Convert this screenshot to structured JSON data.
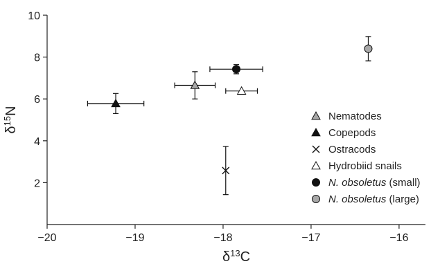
{
  "chart_data": {
    "type": "scatter",
    "xlabel_prefix": "δ",
    "xlabel_sup": "13",
    "xlabel_suffix": "C",
    "ylabel_prefix": "δ",
    "ylabel_sup": "15",
    "ylabel_suffix": "N",
    "xlim": [
      -20,
      -15.7
    ],
    "ylim": [
      0,
      10
    ],
    "xticks": [
      -20,
      -19,
      -18,
      -17,
      -16
    ],
    "yticks": [
      2,
      4,
      6,
      8,
      10
    ],
    "xtick_labels": [
      "−20",
      "−19",
      "−18",
      "−17",
      "−16"
    ],
    "ytick_labels": [
      "2",
      "4",
      "6",
      "8",
      "10"
    ],
    "legend_position": "lower-right",
    "series": [
      {
        "name": "Nematodes",
        "name_italic": "",
        "marker": "triangle",
        "fill": "#a8a8a8",
        "x": -18.32,
        "y": 6.65,
        "xerr": 0.23,
        "yerr": 0.65
      },
      {
        "name": "Copepods",
        "name_italic": "",
        "marker": "triangle",
        "fill": "#111111",
        "x": -19.22,
        "y": 5.78,
        "xerr": 0.32,
        "yerr": 0.48
      },
      {
        "name": "Ostracods",
        "name_italic": "",
        "marker": "cross",
        "fill": "#111111",
        "x": -17.97,
        "y": 2.58,
        "xerr": 0,
        "yerr": 1.15
      },
      {
        "name": "Hydrobiid snails",
        "name_italic": "",
        "marker": "triangle",
        "fill": "#ffffff",
        "x": -17.79,
        "y": 6.38,
        "xerr": 0.18,
        "yerr": 0
      },
      {
        "name": " (small)",
        "name_italic": "N. obsoletus",
        "marker": "circle",
        "fill": "#111111",
        "x": -17.85,
        "y": 7.42,
        "xerr": 0.3,
        "yerr": 0.22
      },
      {
        "name": " (large)",
        "name_italic": "N. obsoletus",
        "marker": "circle",
        "fill": "#a8a8a8",
        "x": -16.35,
        "y": 8.4,
        "xerr": 0,
        "yerr": 0.58
      }
    ]
  }
}
